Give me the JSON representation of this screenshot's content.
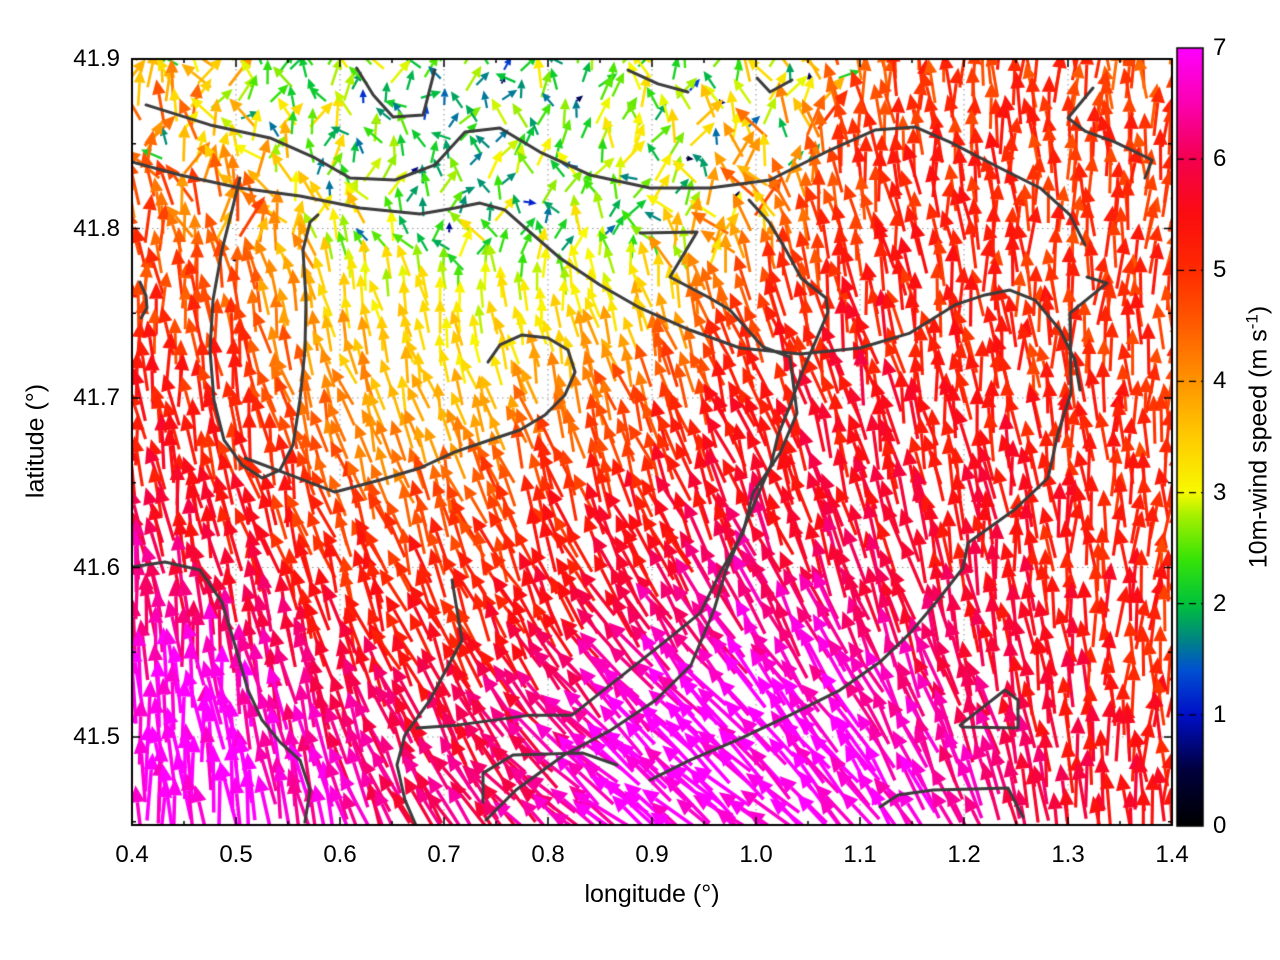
{
  "chart_data": {
    "type": "quiver",
    "title": "",
    "xlabel": "longitude (°)",
    "ylabel": "latitude (°)",
    "x_range": [
      0.4,
      1.4
    ],
    "y_range": [
      41.448,
      41.9
    ],
    "x_ticks": [
      "0.4",
      "0.5",
      "0.6",
      "0.7",
      "0.8",
      "0.9",
      "1.0",
      "1.1",
      "1.2",
      "1.3",
      "1.4"
    ],
    "y_ticks": [
      "41.5",
      "41.6",
      "41.7",
      "41.8",
      "41.9"
    ],
    "grid": true,
    "grid_style": "dotted gray at major ticks",
    "colorbar": {
      "label_prefix": "10m-wind speed (m s",
      "label_sup": "-1",
      "label_suffix": ")",
      "min": 0,
      "max": 7,
      "ticks": [
        "0",
        "1",
        "2",
        "3",
        "4",
        "5",
        "6",
        "7"
      ],
      "palette_stops": [
        [
          0.0,
          "#000000"
        ],
        [
          0.5,
          "#00003c"
        ],
        [
          1.0,
          "#000fc8"
        ],
        [
          1.4,
          "#0050d2"
        ],
        [
          1.7,
          "#00897d"
        ],
        [
          2.0,
          "#00c33c"
        ],
        [
          2.4,
          "#37e407"
        ],
        [
          2.8,
          "#a8f000"
        ],
        [
          3.0,
          "#f8fa00"
        ],
        [
          3.5,
          "#ffcb00"
        ],
        [
          4.0,
          "#ff9400"
        ],
        [
          4.5,
          "#ff5c00"
        ],
        [
          5.0,
          "#ff2b00"
        ],
        [
          5.5,
          "#fb0d10"
        ],
        [
          6.0,
          "#f4004f"
        ],
        [
          6.5,
          "#fb00b0"
        ],
        [
          7.0,
          "#ff00ff"
        ]
      ]
    },
    "wind_field": {
      "description": "10 m wind vectors; speed in m/s mapped to palette; direction degrees CCW from east (90 = northward)",
      "lon": [
        0.4,
        0.5,
        0.6,
        0.7,
        0.8,
        0.9,
        1.0,
        1.1,
        1.2,
        1.3,
        1.4
      ],
      "lat": [
        41.9,
        41.85,
        41.8,
        41.75,
        41.7,
        41.65,
        41.6,
        41.55,
        41.5,
        41.45
      ],
      "speed": [
        [
          4.0,
          3.0,
          2.5,
          2.2,
          2.5,
          2.8,
          3.0,
          4.5,
          5.0,
          4.8,
          4.5
        ],
        [
          4.3,
          3.5,
          2.5,
          2.2,
          2.3,
          2.5,
          3.5,
          4.8,
          5.0,
          5.0,
          4.8
        ],
        [
          4.6,
          4.0,
          3.0,
          2.5,
          2.3,
          2.8,
          4.0,
          5.0,
          5.2,
          5.0,
          4.8
        ],
        [
          5.0,
          4.5,
          3.5,
          3.0,
          3.0,
          3.5,
          4.8,
          5.2,
          5.2,
          5.0,
          5.0
        ],
        [
          5.2,
          5.0,
          4.0,
          3.5,
          3.8,
          4.5,
          5.2,
          5.5,
          5.3,
          5.0,
          5.0
        ],
        [
          5.5,
          5.2,
          4.5,
          4.2,
          4.8,
          5.2,
          5.5,
          5.5,
          5.5,
          5.2,
          5.0
        ],
        [
          6.0,
          5.5,
          5.0,
          5.0,
          5.2,
          5.5,
          6.0,
          5.8,
          5.5,
          5.3,
          5.0
        ],
        [
          6.5,
          6.2,
          5.5,
          5.2,
          5.5,
          6.2,
          6.5,
          6.3,
          5.8,
          5.5,
          5.2
        ],
        [
          7.0,
          6.8,
          6.2,
          5.8,
          6.2,
          6.8,
          7.0,
          6.8,
          6.2,
          5.6,
          5.2
        ],
        [
          7.0,
          7.0,
          6.5,
          6.0,
          6.2,
          7.0,
          7.0,
          7.0,
          6.5,
          5.8,
          5.5
        ]
      ],
      "direction": [
        [
          88,
          95,
          100,
          90,
          80,
          95,
          90,
          95,
          92,
          90,
          88
        ],
        [
          90,
          98,
          105,
          85,
          95,
          88,
          95,
          98,
          93,
          90,
          90
        ],
        [
          92,
          100,
          100,
          95,
          90,
          95,
          100,
          100,
          95,
          90,
          88
        ],
        [
          94,
          100,
          105,
          100,
          98,
          105,
          105,
          100,
          95,
          90,
          88
        ],
        [
          95,
          100,
          108,
          105,
          105,
          108,
          108,
          105,
          96,
          90,
          88
        ],
        [
          96,
          102,
          108,
          110,
          110,
          112,
          110,
          105,
          98,
          92,
          88
        ],
        [
          97,
          103,
          108,
          112,
          115,
          118,
          115,
          108,
          100,
          92,
          88
        ],
        [
          95,
          100,
          108,
          115,
          122,
          126,
          124,
          115,
          104,
          94,
          88
        ],
        [
          93,
          98,
          108,
          118,
          130,
          136,
          134,
          124,
          108,
          95,
          88
        ],
        [
          92,
          96,
          106,
          120,
          138,
          142,
          140,
          130,
          112,
          97,
          90
        ]
      ]
    },
    "contours": {
      "color": "#3c3c3c",
      "width": 3,
      "paths": [
        [
          [
            0.616,
            41.8947
          ],
          [
            0.632,
            41.8788
          ],
          [
            0.651,
            41.8658
          ],
          [
            0.68,
            41.867
          ],
          [
            0.691,
            41.8935
          ]
        ],
        [
          [
            0.4135,
            41.8729
          ],
          [
            0.475,
            41.8611
          ],
          [
            0.5327,
            41.8534
          ],
          [
            0.576,
            41.8416
          ],
          [
            0.6096,
            41.8298
          ],
          [
            0.6529,
            41.8286
          ],
          [
            0.6913,
            41.8375
          ],
          [
            0.7202,
            41.8569
          ],
          [
            0.7538,
            41.8593
          ],
          [
            0.7923,
            41.8451
          ],
          [
            0.8404,
            41.8316
          ],
          [
            0.8981,
            41.8239
          ],
          [
            0.9558,
            41.8239
          ],
          [
            1.0135,
            41.8286
          ],
          [
            1.0712,
            41.8463
          ],
          [
            1.1144,
            41.8581
          ],
          [
            1.1529,
            41.8599
          ],
          [
            1.1865,
            41.851
          ],
          [
            1.2346,
            41.8357
          ],
          [
            1.2731,
            41.8239
          ],
          [
            1.3019,
            41.808
          ],
          [
            1.3163,
            41.7903
          ]
        ],
        [
          [
            0.4,
            41.8392
          ],
          [
            0.4462,
            41.8316
          ],
          [
            0.5038,
            41.8239
          ],
          [
            0.5615,
            41.8192
          ],
          [
            0.6192,
            41.8121
          ],
          [
            0.6769,
            41.8086
          ],
          [
            0.7106,
            41.8121
          ],
          [
            0.7346,
            41.815
          ],
          [
            0.7587,
            41.8109
          ],
          [
            0.7827,
            41.7979
          ],
          [
            0.8115,
            41.7826
          ],
          [
            0.85,
            41.7667
          ],
          [
            0.8885,
            41.7531
          ],
          [
            0.9365,
            41.7401
          ],
          [
            0.9846,
            41.7295
          ],
          [
            1.0423,
            41.726
          ],
          [
            1.1,
            41.7295
          ],
          [
            1.148,
            41.7383
          ],
          [
            1.1913,
            41.7549
          ],
          [
            1.2202,
            41.7608
          ],
          [
            1.2442,
            41.7637
          ],
          [
            1.2683,
            41.7578
          ],
          [
            1.2923,
            41.7401
          ],
          [
            1.3067,
            41.7224
          ],
          [
            1.3115,
            41.7047
          ]
        ],
        [
          [
            0.5087,
            41.6646
          ],
          [
            0.5519,
            41.6546
          ],
          [
            0.5952,
            41.6445
          ],
          [
            0.6385,
            41.6516
          ],
          [
            0.6769,
            41.6587
          ],
          [
            0.7106,
            41.6682
          ],
          [
            0.7442,
            41.6752
          ],
          [
            0.7731,
            41.6811
          ],
          [
            0.7971,
            41.69
          ],
          [
            0.8163,
            41.7018
          ],
          [
            0.826,
            41.7153
          ],
          [
            0.8192,
            41.7283
          ],
          [
            0.8,
            41.7354
          ],
          [
            0.775,
            41.7372
          ],
          [
            0.7538,
            41.7313
          ],
          [
            0.7423,
            41.7212
          ]
        ],
        [
          [
            0.5038,
            41.8298
          ],
          [
            0.4962,
            41.8109
          ],
          [
            0.4865,
            41.7873
          ],
          [
            0.4779,
            41.7578
          ],
          [
            0.475,
            41.7283
          ],
          [
            0.4788,
            41.6988
          ],
          [
            0.4885,
            41.6752
          ],
          [
            0.5058,
            41.6605
          ],
          [
            0.525,
            41.6528
          ],
          [
            0.5423,
            41.6575
          ],
          [
            0.5548,
            41.6723
          ],
          [
            0.5615,
            41.6988
          ],
          [
            0.5663,
            41.7283
          ],
          [
            0.5673,
            41.7578
          ],
          [
            0.5644,
            41.7873
          ],
          [
            0.5712,
            41.8038
          ],
          [
            0.5788,
            41.808
          ]
        ],
        [
          [
            0.7077,
            41.5926
          ],
          [
            0.7173,
            41.5572
          ],
          [
            0.6865,
            41.5218
          ],
          [
            0.6625,
            41.5012
          ],
          [
            0.6548,
            41.4835
          ],
          [
            0.6625,
            41.4628
          ],
          [
            0.675,
            41.4451
          ]
        ],
        [
          [
            0.8885,
            41.7973
          ],
          [
            0.9433,
            41.7979
          ],
          [
            0.9173,
            41.7714
          ],
          [
            0.9538,
            41.7596
          ],
          [
            0.975,
            41.7519
          ],
          [
            1.0067,
            41.7301
          ],
          [
            1.0327,
            41.7242
          ],
          [
            1.0394,
            41.6911
          ],
          [
            1.0231,
            41.6675
          ],
          [
            0.9971,
            41.6439
          ],
          [
            0.9875,
            41.6203
          ],
          [
            0.9654,
            41.5967
          ],
          [
            0.9462,
            41.5731
          ],
          [
            0.9106,
            41.5554
          ],
          [
            0.8596,
            41.5306
          ],
          [
            0.8231,
            41.5129
          ],
          [
            0.7827,
            41.5129
          ],
          [
            0.7125,
            41.507
          ],
          [
            0.674,
            41.5053
          ]
        ],
        [
          [
            0.9933,
            41.8168
          ],
          [
            1.0125,
            41.8038
          ],
          [
            1.0288,
            41.7873
          ],
          [
            1.0433,
            41.7708
          ],
          [
            1.0673,
            41.759
          ],
          [
            1.0692,
            41.7507
          ],
          [
            1.0558,
            41.7313
          ],
          [
            1.0433,
            41.7136
          ],
          [
            1.0337,
            41.6971
          ],
          [
            1.0212,
            41.6782
          ],
          [
            1.0144,
            41.6605
          ],
          [
            1.0019,
            41.6428
          ],
          [
            0.9856,
            41.6192
          ],
          [
            0.9712,
            41.5985
          ],
          [
            0.9596,
            41.5749
          ],
          [
            0.9375,
            41.5425
          ],
          [
            0.9038,
            41.5218
          ],
          [
            0.8606,
            41.5041
          ],
          [
            0.8154,
            41.4894
          ],
          [
            0.7692,
            41.4687
          ],
          [
            0.7404,
            41.451
          ]
        ],
        [
          [
            1.3183,
            41.7714
          ],
          [
            1.3375,
            41.7678
          ],
          [
            1.3019,
            41.7501
          ],
          [
            1.3029,
            41.7029
          ],
          [
            1.2904,
            41.6793
          ],
          [
            1.2808,
            41.6528
          ],
          [
            1.2481,
            41.6339
          ],
          [
            1.2038,
            41.6144
          ],
          [
            1.199,
            41.5997
          ],
          [
            1.175,
            41.5808
          ],
          [
            1.1481,
            41.5613
          ],
          [
            1.1192,
            41.5442
          ],
          [
            1.0808,
            41.5277
          ],
          [
            1.0327,
            41.5129
          ],
          [
            0.9817,
            41.4982
          ],
          [
            0.9365,
            41.4864
          ],
          [
            0.898,
            41.4746
          ]
        ],
        [
          [
            1.1192,
            41.4587
          ],
          [
            1.1365,
            41.4658
          ],
          [
            1.1702,
            41.4687
          ],
          [
            1.2087,
            41.4693
          ],
          [
            1.2423,
            41.4699
          ],
          [
            1.2567,
            41.4528
          ]
        ],
        [
          [
            1.1962,
            41.507
          ],
          [
            1.2394,
            41.5277
          ],
          [
            1.2519,
            41.5218
          ],
          [
            1.2519,
            41.5053
          ],
          [
            1.1981,
            41.5059
          ],
          [
            1.1962,
            41.507
          ]
        ],
        [
          [
            1.324,
            41.8829
          ],
          [
            1.3,
            41.8652
          ],
          [
            1.3163,
            41.8575
          ],
          [
            1.3452,
            41.851
          ],
          [
            1.3808,
            41.8404
          ],
          [
            1.374,
            41.8298
          ]
        ],
        [
          [
            1.001,
            41.8888
          ],
          [
            1.0135,
            41.8805
          ],
          [
            1.0346,
            41.8876
          ]
        ],
        [
          [
            0.8769,
            41.8935
          ],
          [
            0.9058,
            41.8853
          ],
          [
            0.9346,
            41.8805
          ]
        ],
        [
          [
            0.4077,
            41.7684
          ],
          [
            0.4135,
            41.7602
          ],
          [
            0.4144,
            41.7531
          ],
          [
            0.4087,
            41.7472
          ]
        ],
        [
          [
            0.4,
            41.6003
          ],
          [
            0.4317,
            41.6032
          ],
          [
            0.4654,
            41.5985
          ],
          [
            0.4865,
            41.5796
          ],
          [
            0.499,
            41.5543
          ],
          [
            0.5115,
            41.5277
          ],
          [
            0.525,
            41.51
          ],
          [
            0.5423,
            41.497
          ],
          [
            0.5615,
            41.4864
          ],
          [
            0.5712,
            41.4687
          ],
          [
            0.5663,
            41.4498
          ]
        ],
        [
          [
            0.7375,
            41.4616
          ],
          [
            0.7375,
            41.4787
          ],
          [
            0.7663,
            41.4894
          ],
          [
            0.8337,
            41.4905
          ],
          [
            0.8663,
            41.4835
          ]
        ]
      ]
    }
  }
}
